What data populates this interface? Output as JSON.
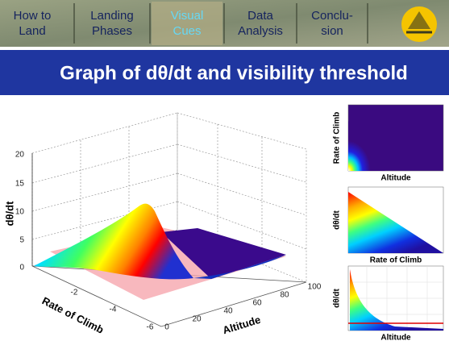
{
  "nav": {
    "tabs": [
      {
        "lines": [
          "How to",
          "Land"
        ]
      },
      {
        "lines": [
          "Landing",
          "Phases"
        ]
      },
      {
        "lines": [
          "Visual",
          "Cues"
        ]
      },
      {
        "lines": [
          "Data",
          "Analysis"
        ]
      },
      {
        "lines": [
          "Conclu-",
          "sion"
        ]
      }
    ]
  },
  "title": "Graph of dθ/dt and visibility threshold",
  "main_plot": {
    "z_label": "dθ/dt",
    "x_label": "Rate of Climb",
    "y_label": "Altitude",
    "z_ticks": [
      20,
      15,
      10,
      5,
      0
    ],
    "x_ticks": [
      -2,
      -4,
      -6
    ],
    "y_ticks": [
      0,
      20,
      40,
      60,
      80,
      100
    ]
  },
  "small_plots": [
    {
      "y_label": "Rate of Climb",
      "x_label": "Altitude"
    },
    {
      "y_label": "dθ/dt",
      "x_label": "Rate of Climb"
    },
    {
      "y_label": "dθ/dt",
      "x_label": "Altitude"
    }
  ]
}
